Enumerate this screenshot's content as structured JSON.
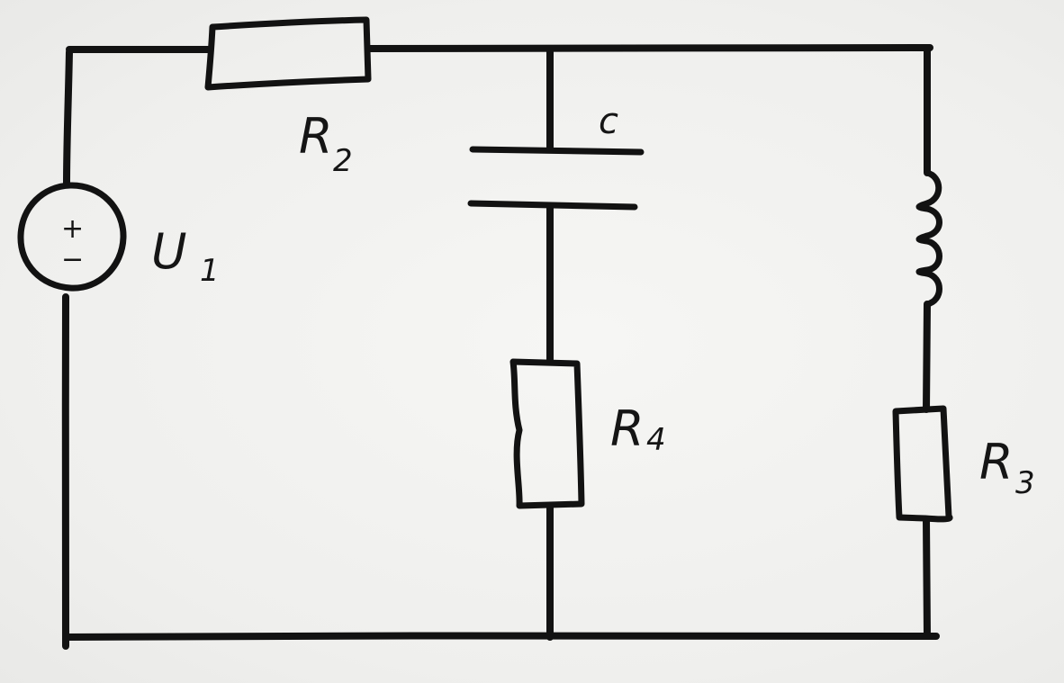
{
  "diagram": {
    "source": {
      "name_main": "U",
      "name_sub": "1",
      "plus": "+",
      "minus": "−"
    },
    "resistor_r2": {
      "name_main": "R",
      "name_sub": "2"
    },
    "capacitor": {
      "name": "c"
    },
    "resistor_r4": {
      "name_main": "R",
      "name_sub": "4"
    },
    "resistor_r3": {
      "name_main": "R",
      "name_sub": "3"
    }
  }
}
